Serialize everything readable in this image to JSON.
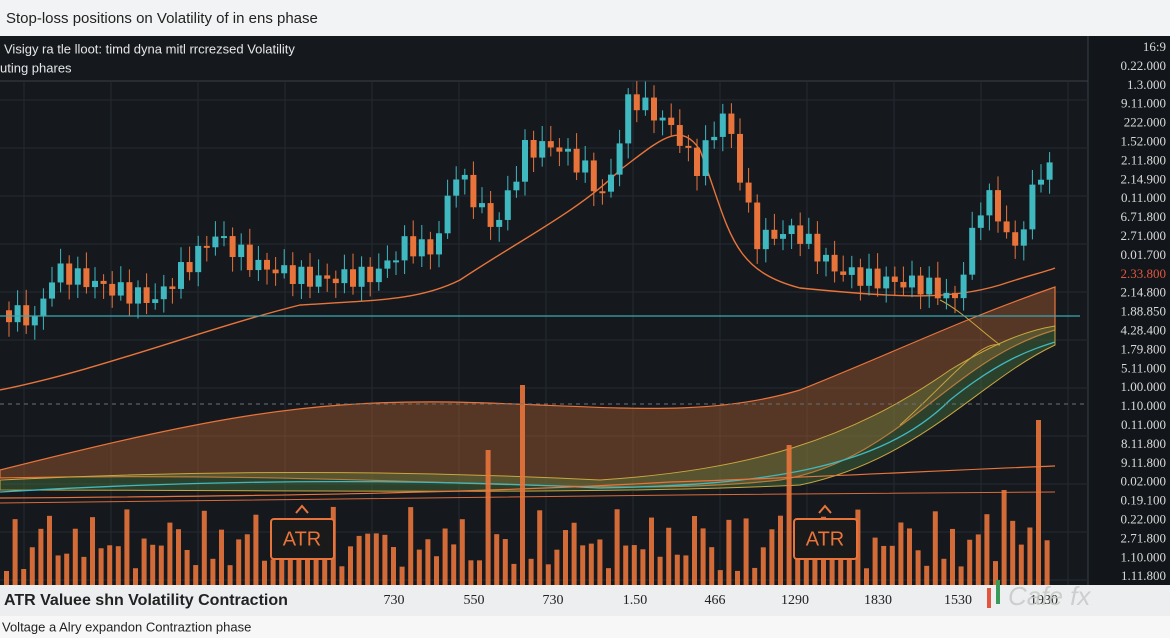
{
  "header": {
    "title": "Stop-loss positions on Volatility of in ens phase"
  },
  "chart": {
    "subtitle_lines": [
      "Visigy ra tle lloot: timd dyna mitl rrcrezsed Volatility",
      "uting phares"
    ],
    "axis_labels": [
      "16:9",
      "0.22.000",
      "1.3.000",
      "9.11.000",
      "222.000",
      "1.52.000",
      "2.11.800",
      "2.14.900",
      "0.11.000",
      "6.71.800",
      "2.71.000",
      "0.01.700",
      "2.33.800",
      "2.14.800",
      "1.88.850",
      "4.28.400",
      "1.79.800",
      "5.11.000",
      "1.00.000",
      "1.10.000",
      "0.11.000",
      "8.11.800",
      "9.11.800",
      "0.02.000",
      "0.19.100",
      "0.22.000",
      "2.71.800",
      "1.10.000",
      "1.11.800"
    ],
    "badges": [
      "ATR",
      "ATR"
    ]
  },
  "footer": {
    "label": "ATR Valuee shn Volatility Contraction",
    "values": [
      "730",
      "550",
      "730",
      "1.50",
      "466",
      "1290",
      "1830",
      "1530",
      "1930"
    ],
    "logo": "Cafe fx",
    "note": "Voltage a Alry expandon Contraztion phase"
  }
}
